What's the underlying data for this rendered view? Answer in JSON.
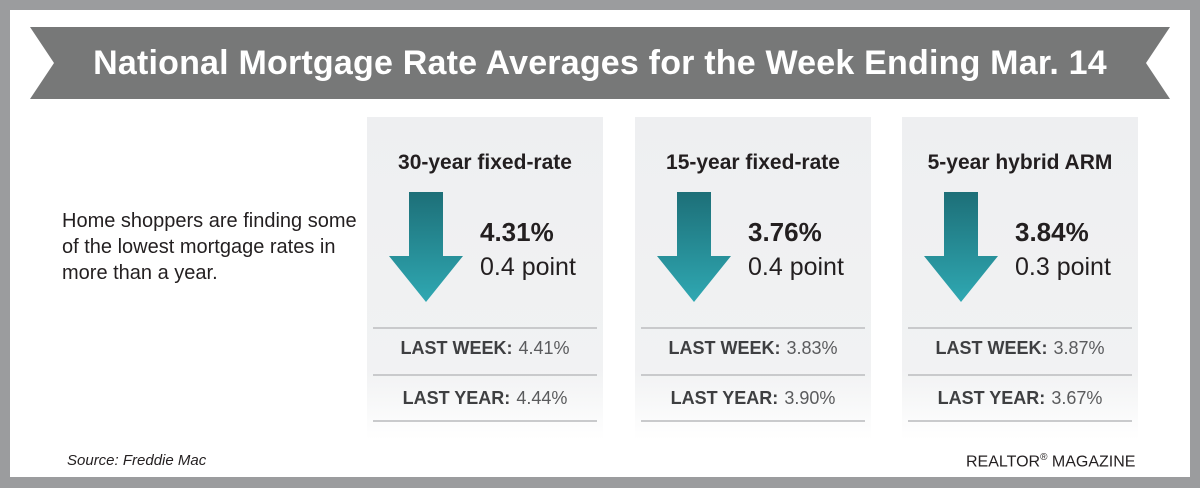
{
  "header": {
    "title": "National Mortgage Rate Averages for the Week Ending Mar. 14"
  },
  "intro": {
    "text": "Home shoppers are finding some of the lowest mortgage rates in more than a year."
  },
  "colors": {
    "banner": "#777878",
    "arrow_top": "#1d6f78",
    "arrow_bottom": "#2fa8b2",
    "panel_bg": "#efeff1"
  },
  "panels": [
    {
      "title": "30-year fixed-rate",
      "direction_icon": "down-arrow-icon",
      "rate": "4.31%",
      "change": "0.4 point",
      "last_week_label": "LAST WEEK:",
      "last_week_value": "4.41%",
      "last_year_label": "LAST YEAR:",
      "last_year_value": "4.44%"
    },
    {
      "title": "15-year fixed-rate",
      "direction_icon": "down-arrow-icon",
      "rate": "3.76%",
      "change": "0.4 point",
      "last_week_label": "LAST WEEK:",
      "last_week_value": "3.83%",
      "last_year_label": "LAST YEAR:",
      "last_year_value": "3.90%"
    },
    {
      "title": "5-year hybrid ARM",
      "direction_icon": "down-arrow-icon",
      "rate": "3.84%",
      "change": "0.3 point",
      "last_week_label": "LAST WEEK:",
      "last_week_value": "3.87%",
      "last_year_label": "LAST YEAR:",
      "last_year_value": "3.67%"
    }
  ],
  "footer": {
    "source": "Source: Freddie Mac",
    "credit_brand": "REALTOR",
    "credit_mark": "®",
    "credit_suffix": " MAGAZINE"
  }
}
